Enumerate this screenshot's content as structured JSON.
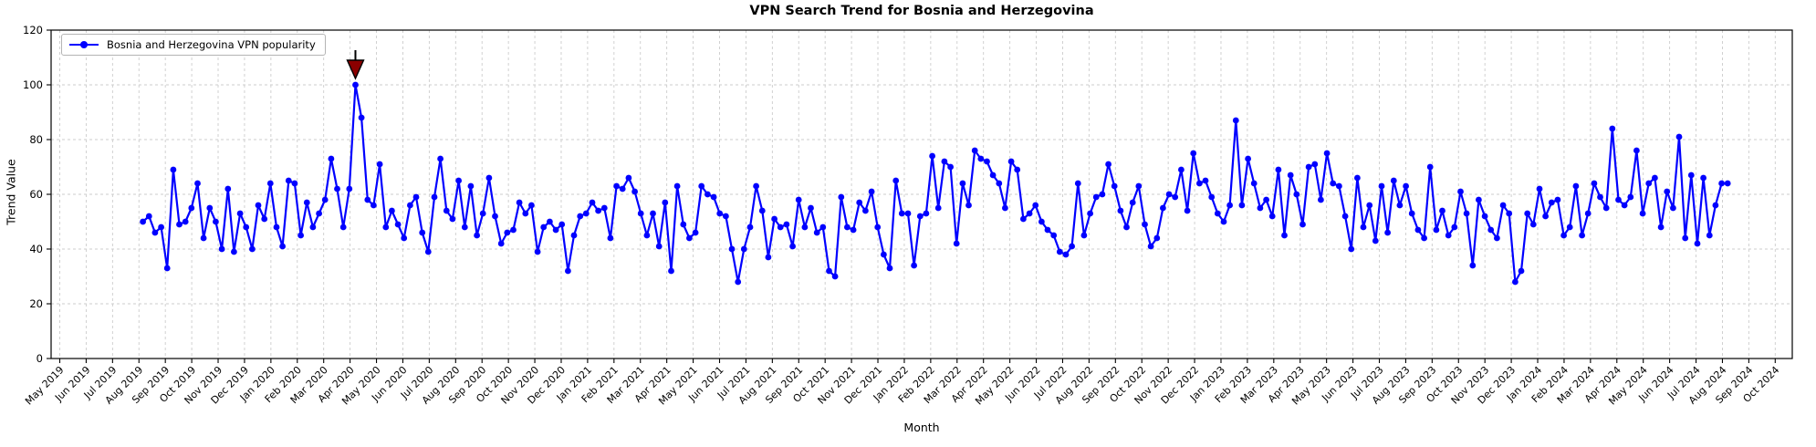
{
  "chart_data": {
    "type": "line",
    "title": "VPN Search Trend for Bosnia and Herzegovina",
    "xlabel": "Month",
    "ylabel": "Trend Value",
    "ylim": [
      0,
      120
    ],
    "grid": true,
    "legend_position": "upper left",
    "y_ticks": [
      0,
      20,
      40,
      60,
      80,
      100,
      120
    ],
    "x_tick_labels": [
      "May 2019",
      "Jun 2019",
      "Jul 2019",
      "Aug 2019",
      "Sep 2019",
      "Oct 2019",
      "Nov 2019",
      "Dec 2019",
      "Jan 2020",
      "Feb 2020",
      "Mar 2020",
      "Apr 2020",
      "May 2020",
      "Jun 2020",
      "Jul 2020",
      "Aug 2020",
      "Sep 2020",
      "Oct 2020",
      "Nov 2020",
      "Dec 2020",
      "Jan 2021",
      "Feb 2021",
      "Mar 2021",
      "Apr 2021",
      "May 2021",
      "Jun 2021",
      "Jul 2021",
      "Aug 2021",
      "Sep 2021",
      "Oct 2021",
      "Nov 2021",
      "Dec 2021",
      "Jan 2022",
      "Feb 2022",
      "Mar 2022",
      "Apr 2022",
      "May 2022",
      "Jun 2022",
      "Jul 2022",
      "Aug 2022",
      "Sep 2022",
      "Oct 2022",
      "Nov 2022",
      "Dec 2022",
      "Jan 2023",
      "Feb 2023",
      "Mar 2023",
      "Apr 2023",
      "May 2023",
      "Jun 2023",
      "Jul 2023",
      "Aug 2023",
      "Sep 2023",
      "Oct 2023",
      "Nov 2023",
      "Dec 2023",
      "Jan 2024",
      "Feb 2024",
      "Mar 2024",
      "Apr 2024",
      "May 2024",
      "Jun 2024",
      "Jul 2024",
      "Aug 2024",
      "Sep 2024",
      "Oct 2024"
    ],
    "series": [
      {
        "name": "Bosnia and Herzegovina VPN popularity",
        "color": "#0000ff",
        "marker": "circle",
        "x_start_month_index": 3.15,
        "x_end_month_index": 63.2,
        "frequency": "weekly",
        "values": [
          50,
          52,
          46,
          48,
          33,
          69,
          49,
          50,
          55,
          64,
          44,
          55,
          50,
          40,
          62,
          39,
          53,
          48,
          40,
          56,
          51,
          64,
          48,
          41,
          65,
          64,
          45,
          57,
          48,
          53,
          58,
          73,
          62,
          48,
          62,
          100,
          88,
          58,
          56,
          71,
          48,
          54,
          49,
          44,
          56,
          59,
          46,
          39,
          59,
          73,
          54,
          51,
          65,
          48,
          63,
          45,
          53,
          66,
          52,
          42,
          46,
          47,
          57,
          53,
          56,
          39,
          48,
          50,
          47,
          49,
          32,
          45,
          52,
          53,
          57,
          54,
          55,
          44,
          63,
          62,
          66,
          61,
          53,
          45,
          53,
          41,
          57,
          32,
          63,
          49,
          44,
          46,
          63,
          60,
          59,
          53,
          52,
          40,
          28,
          40,
          48,
          63,
          54,
          37,
          51,
          48,
          49,
          41,
          58,
          48,
          55,
          46,
          48,
          32,
          30,
          59,
          48,
          47,
          57,
          54,
          61,
          48,
          38,
          33,
          65,
          53,
          53,
          34,
          52,
          53,
          74,
          55,
          72,
          70,
          42,
          64,
          56,
          76,
          73,
          72,
          67,
          64,
          55,
          72,
          69,
          51,
          53,
          56,
          50,
          47,
          45,
          39,
          38,
          41,
          64,
          45,
          53,
          59,
          60,
          71,
          63,
          54,
          48,
          57,
          63,
          49,
          41,
          44,
          55,
          60,
          59,
          69,
          54,
          75,
          64,
          65,
          59,
          53,
          50,
          56,
          87,
          56,
          73,
          64,
          55,
          58,
          52,
          69,
          45,
          67,
          60,
          49,
          70,
          71,
          58,
          75,
          64,
          63,
          52,
          40,
          66,
          48,
          56,
          43,
          63,
          46,
          65,
          56,
          63,
          53,
          47,
          44,
          70,
          47,
          54,
          45,
          48,
          61,
          53,
          34,
          58,
          52,
          47,
          44,
          56,
          53,
          28,
          32,
          53,
          49,
          62,
          52,
          57,
          58,
          45,
          48,
          63,
          45,
          53,
          64,
          59,
          55,
          84,
          58,
          56,
          59,
          76,
          53,
          64,
          66,
          48,
          61,
          55,
          81,
          44,
          67,
          42,
          66,
          45,
          56,
          64,
          64
        ]
      }
    ],
    "annotation": {
      "type": "triangle-down",
      "target": "series-maximum",
      "at_value": 100,
      "color": "#8b0000"
    }
  },
  "colors": {
    "line": "#0000ff",
    "marker": "#0000ff",
    "annotation": "#8b0000",
    "grid": "#cccccc",
    "axis": "#000000",
    "background": "#ffffff"
  }
}
